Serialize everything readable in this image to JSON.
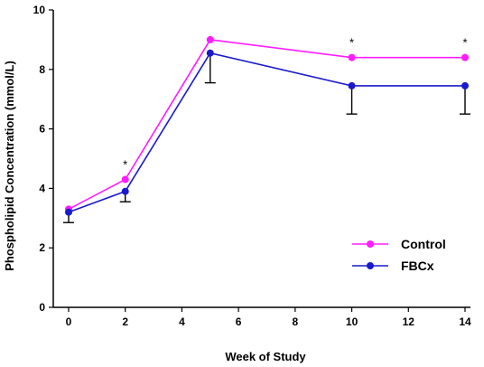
{
  "chart_data": {
    "type": "line",
    "xlabel": "Week of Study",
    "ylabel": "Phospholipid Concentration (mmol/L)",
    "xlim": [
      0,
      14
    ],
    "ylim": [
      0,
      10
    ],
    "xticks": [
      0,
      2,
      4,
      6,
      8,
      10,
      12,
      14
    ],
    "yticks": [
      0,
      2,
      4,
      6,
      8,
      10
    ],
    "grid": false,
    "legend_position": "bottom-right",
    "series": [
      {
        "name": "Control",
        "color": "#ff1cff",
        "x": [
          0,
          2,
          5,
          10,
          14
        ],
        "y": [
          3.3,
          4.3,
          9.0,
          8.4,
          8.4
        ],
        "error_down": [
          0.0,
          0.0,
          0.0,
          0.0,
          0.0
        ]
      },
      {
        "name": "FBCx",
        "color": "#1a1acc",
        "x": [
          0,
          2,
          5,
          10,
          14
        ],
        "y": [
          3.2,
          3.9,
          8.55,
          7.45,
          7.45
        ],
        "error_down": [
          0.35,
          0.35,
          1.0,
          0.95,
          0.95
        ]
      }
    ],
    "annotations": [
      {
        "text": "*",
        "x": 2,
        "y": 4.3
      },
      {
        "text": "*",
        "x": 10,
        "y": 8.4
      },
      {
        "text": "*",
        "x": 14,
        "y": 8.4
      }
    ]
  }
}
